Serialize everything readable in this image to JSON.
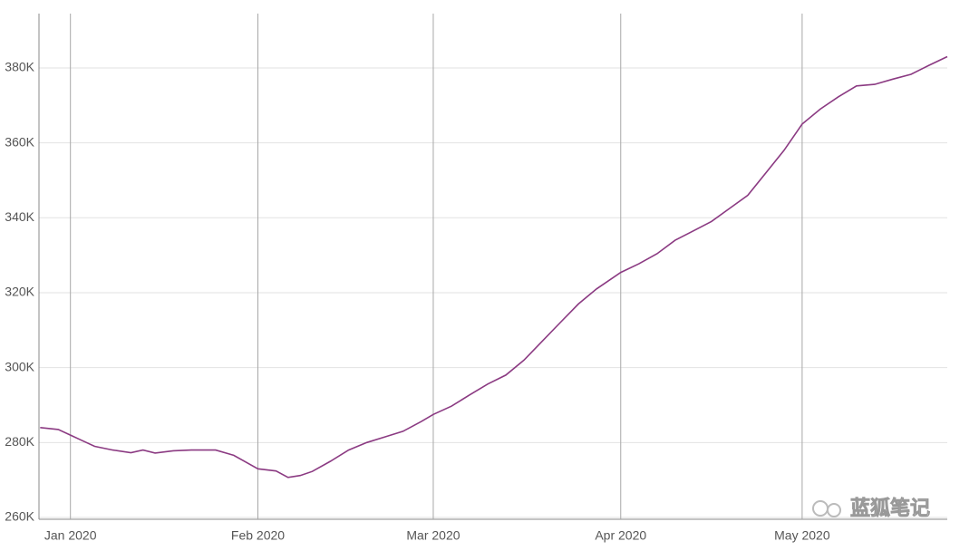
{
  "chart_data": {
    "type": "line",
    "x": [
      -5,
      -2,
      0,
      2,
      4,
      7,
      10,
      12,
      14,
      17,
      20,
      24,
      27,
      31,
      34,
      36,
      38,
      40,
      43,
      46,
      49,
      52,
      55,
      58,
      60,
      63,
      66,
      69,
      72,
      75,
      78,
      81,
      84,
      87,
      91,
      94,
      97,
      100,
      103,
      106,
      109,
      112,
      115,
      118,
      121,
      124,
      127,
      130,
      133,
      136,
      139,
      142,
      145
    ],
    "series": [
      {
        "name": "",
        "color": "#8b3a82",
        "values": [
          284000,
          283500,
          282000,
          280500,
          279000,
          278000,
          277300,
          278000,
          277200,
          277800,
          278000,
          278000,
          276600,
          273000,
          272400,
          270700,
          271200,
          272300,
          275000,
          278000,
          280000,
          281500,
          283000,
          285600,
          287500,
          289700,
          292700,
          295600,
          298000,
          302000,
          307000,
          312000,
          317000,
          321000,
          325400,
          327700,
          330400,
          334000,
          336500,
          339000,
          342500,
          346000,
          352000,
          358000,
          365000,
          369000,
          372300,
          375200,
          375600,
          377000,
          378300,
          380700,
          383000
        ]
      }
    ],
    "xlim": [
      -5.2,
      145
    ],
    "xticks": [
      {
        "value": 0,
        "label": "Jan 2020"
      },
      {
        "value": 31,
        "label": "Feb 2020"
      },
      {
        "value": 60,
        "label": "Mar 2020"
      },
      {
        "value": 91,
        "label": "Apr 2020"
      },
      {
        "value": 121,
        "label": "May 2020"
      }
    ],
    "ylim": [
      260000,
      394500
    ],
    "yticks": [
      {
        "value": 260000,
        "label": "260K"
      },
      {
        "value": 280000,
        "label": "280K"
      },
      {
        "value": 300000,
        "label": "300K"
      },
      {
        "value": 320000,
        "label": "320K"
      },
      {
        "value": 340000,
        "label": "340K"
      },
      {
        "value": 360000,
        "label": "360K"
      },
      {
        "value": 380000,
        "label": "380K"
      }
    ],
    "grid": true,
    "watermark": "蓝狐笔记"
  }
}
